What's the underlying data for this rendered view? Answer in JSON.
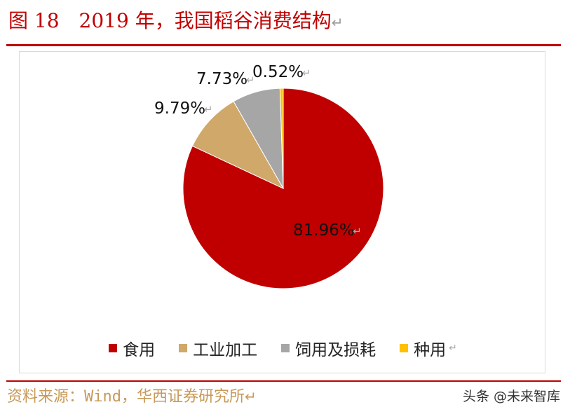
{
  "figure": {
    "number": "图 18",
    "title": "2019 年，我国稻谷消费结构",
    "return_mark": "↵"
  },
  "chart_data": {
    "type": "pie",
    "categories": [
      "食用",
      "工业加工",
      "饲用及损耗",
      "种用"
    ],
    "values": [
      81.96,
      9.79,
      7.73,
      0.52
    ],
    "labels": [
      "81.96%",
      "9.79%",
      "7.73%",
      "0.52%"
    ],
    "title": "",
    "legend_position": "bottom",
    "colors": [
      "#c00000",
      "#cfa86a",
      "#a6a6a6",
      "#ffc000"
    ]
  },
  "source": {
    "text": "资料来源：Wind，华西证券研究所",
    "return_mark": "↵"
  },
  "watermark": {
    "text": "头条 @未来智库"
  }
}
